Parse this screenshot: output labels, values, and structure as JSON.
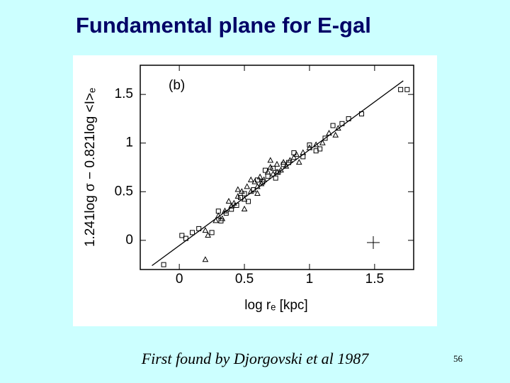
{
  "chart_data": {
    "type": "scatter",
    "title": "Fundamental plane for E-gal",
    "panel_label": "(b)",
    "x_label": "log rₑ  [kpc]",
    "y_label": "1.241log σ − 0.821log <I>ₑ",
    "caption": "First found by Djorgovski et al 1987",
    "page_number": "56",
    "xlim": [
      -0.3,
      1.8
    ],
    "ylim": [
      -0.3,
      1.8
    ],
    "xticks": [
      0,
      0.5,
      1,
      1.5
    ],
    "yticks": [
      0,
      0.5,
      1,
      1.5
    ],
    "series": [
      {
        "marker": "triangle",
        "color": "#000000",
        "x": [
          0.2,
          0.22,
          0.3,
          0.35,
          0.38,
          0.4,
          0.45,
          0.48,
          0.5,
          0.52,
          0.55,
          0.58,
          0.6,
          0.62,
          0.65,
          0.68,
          0.7,
          0.72,
          0.75,
          0.78,
          0.8,
          0.82,
          0.85,
          0.9,
          0.95,
          1.0,
          1.05,
          1.1,
          0.42,
          0.33,
          0.28,
          0.55,
          0.63,
          0.7,
          0.88,
          0.2,
          0.5,
          1.2,
          1.22,
          0.45,
          0.6,
          0.75,
          0.92,
          1.15
        ],
        "values": [
          -0.2,
          0.05,
          0.25,
          0.3,
          0.4,
          0.35,
          0.45,
          0.5,
          0.42,
          0.55,
          0.5,
          0.6,
          0.55,
          0.65,
          0.62,
          0.7,
          0.75,
          0.68,
          0.78,
          0.72,
          0.8,
          0.76,
          0.82,
          0.88,
          0.9,
          0.95,
          0.98,
          1.0,
          0.38,
          0.22,
          0.2,
          0.62,
          0.58,
          0.82,
          0.85,
          0.1,
          0.32,
          1.08,
          1.15,
          0.52,
          0.48,
          0.7,
          0.8,
          1.1
        ]
      },
      {
        "marker": "square",
        "color": "#000000",
        "x": [
          -0.12,
          0.02,
          0.05,
          0.15,
          0.25,
          0.32,
          0.36,
          0.4,
          0.44,
          0.5,
          0.53,
          0.57,
          0.6,
          0.64,
          0.68,
          0.72,
          0.76,
          0.8,
          0.84,
          0.88,
          0.95,
          1.0,
          1.08,
          1.12,
          1.18,
          1.25,
          1.3,
          1.4,
          1.7,
          1.75,
          0.3,
          0.47,
          0.66,
          0.74,
          1.05,
          0.1
        ],
        "values": [
          -0.25,
          0.05,
          0.02,
          0.12,
          0.08,
          0.2,
          0.28,
          0.32,
          0.36,
          0.48,
          0.4,
          0.52,
          0.62,
          0.6,
          0.66,
          0.74,
          0.7,
          0.78,
          0.8,
          0.9,
          0.86,
          0.98,
          0.94,
          1.05,
          1.18,
          1.2,
          1.25,
          1.3,
          1.55,
          1.55,
          0.3,
          0.44,
          0.72,
          0.64,
          0.92,
          0.08
        ]
      },
      {
        "marker": "line",
        "color": "#000000",
        "x": [
          -0.21,
          1.72
        ],
        "values": [
          -0.26,
          1.64
        ]
      }
    ]
  }
}
